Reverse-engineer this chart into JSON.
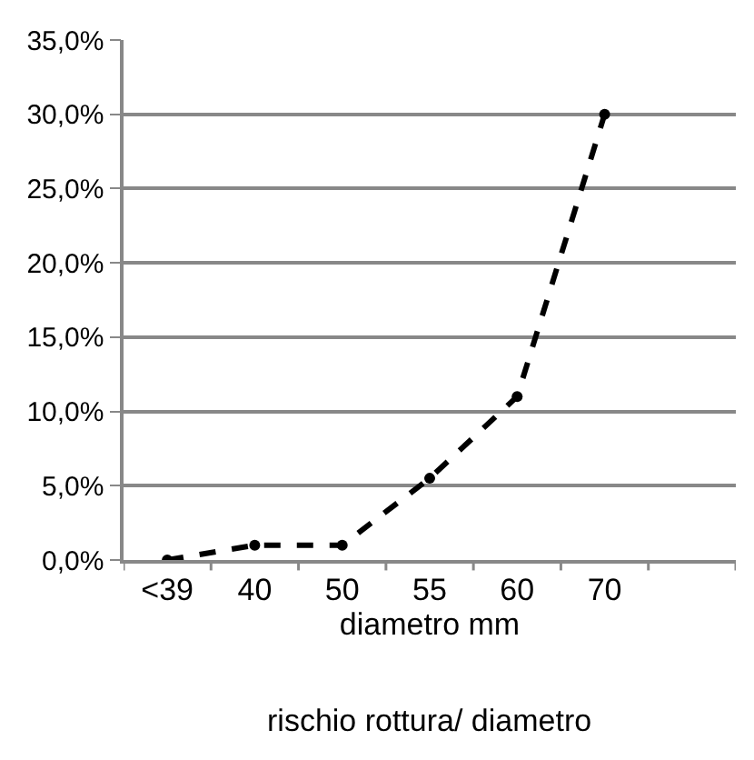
{
  "chart_data": {
    "type": "line",
    "categories": [
      "<39",
      "40",
      "50",
      "55",
      "60",
      "70",
      null
    ],
    "series": [
      {
        "color": "#000000",
        "values": [
          0.0,
          1.0,
          1.0,
          5.5,
          11.0,
          30.0,
          null
        ]
      }
    ],
    "xlabel": "diametro mm",
    "annotations": [
      "rischio rottura/ diametro"
    ],
    "ylim": [
      0,
      35
    ],
    "yticks": [
      {
        "value": 0,
        "label": "0,0%"
      },
      {
        "value": 5,
        "label": "5,0%"
      },
      {
        "value": 10,
        "label": "10,0%"
      },
      {
        "value": 15,
        "label": "15,0%"
      },
      {
        "value": 20,
        "label": "20,0%"
      },
      {
        "value": 25,
        "label": "25,0%"
      },
      {
        "value": 30,
        "label": "30,0%"
      },
      {
        "value": 35,
        "label": "35,0%"
      }
    ],
    "grid": "y",
    "legend": false,
    "marker": "circle",
    "line_style": "dashed"
  }
}
